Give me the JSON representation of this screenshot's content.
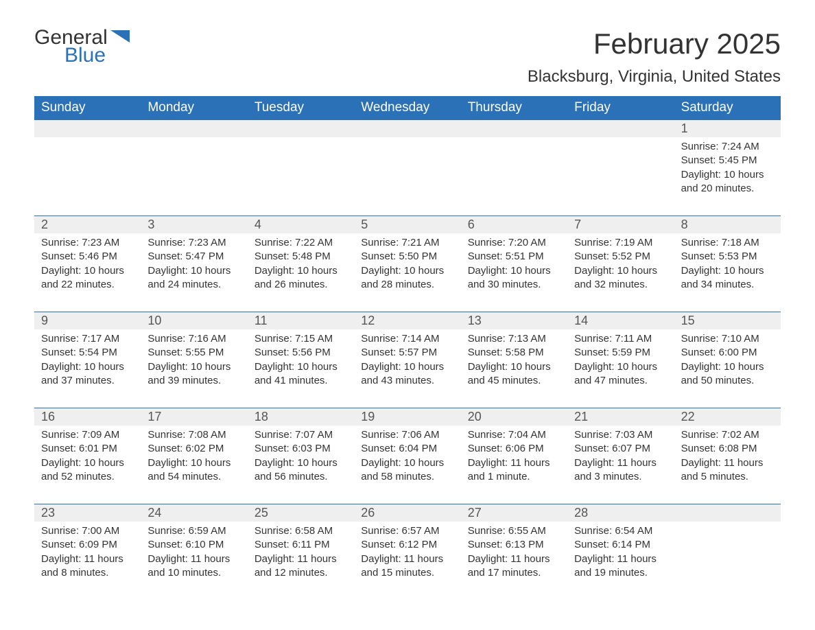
{
  "logo": {
    "word1": "General",
    "word2": "Blue",
    "flag_color": "#2a71b8"
  },
  "title": "February 2025",
  "location": "Blacksburg, Virginia, United States",
  "colors": {
    "header_bg": "#2a71b8",
    "header_text": "#ffffff",
    "daynum_bg": "#efefef",
    "text": "#333333",
    "rule": "#2a71b8"
  },
  "day_names": [
    "Sunday",
    "Monday",
    "Tuesday",
    "Wednesday",
    "Thursday",
    "Friday",
    "Saturday"
  ],
  "weeks": [
    {
      "nums": [
        "",
        "",
        "",
        "",
        "",
        "",
        "1"
      ],
      "cells": [
        {},
        {},
        {},
        {},
        {},
        {},
        {
          "sunrise": "Sunrise: 7:24 AM",
          "sunset": "Sunset: 5:45 PM",
          "daylight": "Daylight: 10 hours and 20 minutes."
        }
      ]
    },
    {
      "nums": [
        "2",
        "3",
        "4",
        "5",
        "6",
        "7",
        "8"
      ],
      "cells": [
        {
          "sunrise": "Sunrise: 7:23 AM",
          "sunset": "Sunset: 5:46 PM",
          "daylight": "Daylight: 10 hours and 22 minutes."
        },
        {
          "sunrise": "Sunrise: 7:23 AM",
          "sunset": "Sunset: 5:47 PM",
          "daylight": "Daylight: 10 hours and 24 minutes."
        },
        {
          "sunrise": "Sunrise: 7:22 AM",
          "sunset": "Sunset: 5:48 PM",
          "daylight": "Daylight: 10 hours and 26 minutes."
        },
        {
          "sunrise": "Sunrise: 7:21 AM",
          "sunset": "Sunset: 5:50 PM",
          "daylight": "Daylight: 10 hours and 28 minutes."
        },
        {
          "sunrise": "Sunrise: 7:20 AM",
          "sunset": "Sunset: 5:51 PM",
          "daylight": "Daylight: 10 hours and 30 minutes."
        },
        {
          "sunrise": "Sunrise: 7:19 AM",
          "sunset": "Sunset: 5:52 PM",
          "daylight": "Daylight: 10 hours and 32 minutes."
        },
        {
          "sunrise": "Sunrise: 7:18 AM",
          "sunset": "Sunset: 5:53 PM",
          "daylight": "Daylight: 10 hours and 34 minutes."
        }
      ]
    },
    {
      "nums": [
        "9",
        "10",
        "11",
        "12",
        "13",
        "14",
        "15"
      ],
      "cells": [
        {
          "sunrise": "Sunrise: 7:17 AM",
          "sunset": "Sunset: 5:54 PM",
          "daylight": "Daylight: 10 hours and 37 minutes."
        },
        {
          "sunrise": "Sunrise: 7:16 AM",
          "sunset": "Sunset: 5:55 PM",
          "daylight": "Daylight: 10 hours and 39 minutes."
        },
        {
          "sunrise": "Sunrise: 7:15 AM",
          "sunset": "Sunset: 5:56 PM",
          "daylight": "Daylight: 10 hours and 41 minutes."
        },
        {
          "sunrise": "Sunrise: 7:14 AM",
          "sunset": "Sunset: 5:57 PM",
          "daylight": "Daylight: 10 hours and 43 minutes."
        },
        {
          "sunrise": "Sunrise: 7:13 AM",
          "sunset": "Sunset: 5:58 PM",
          "daylight": "Daylight: 10 hours and 45 minutes."
        },
        {
          "sunrise": "Sunrise: 7:11 AM",
          "sunset": "Sunset: 5:59 PM",
          "daylight": "Daylight: 10 hours and 47 minutes."
        },
        {
          "sunrise": "Sunrise: 7:10 AM",
          "sunset": "Sunset: 6:00 PM",
          "daylight": "Daylight: 10 hours and 50 minutes."
        }
      ]
    },
    {
      "nums": [
        "16",
        "17",
        "18",
        "19",
        "20",
        "21",
        "22"
      ],
      "cells": [
        {
          "sunrise": "Sunrise: 7:09 AM",
          "sunset": "Sunset: 6:01 PM",
          "daylight": "Daylight: 10 hours and 52 minutes."
        },
        {
          "sunrise": "Sunrise: 7:08 AM",
          "sunset": "Sunset: 6:02 PM",
          "daylight": "Daylight: 10 hours and 54 minutes."
        },
        {
          "sunrise": "Sunrise: 7:07 AM",
          "sunset": "Sunset: 6:03 PM",
          "daylight": "Daylight: 10 hours and 56 minutes."
        },
        {
          "sunrise": "Sunrise: 7:06 AM",
          "sunset": "Sunset: 6:04 PM",
          "daylight": "Daylight: 10 hours and 58 minutes."
        },
        {
          "sunrise": "Sunrise: 7:04 AM",
          "sunset": "Sunset: 6:06 PM",
          "daylight": "Daylight: 11 hours and 1 minute."
        },
        {
          "sunrise": "Sunrise: 7:03 AM",
          "sunset": "Sunset: 6:07 PM",
          "daylight": "Daylight: 11 hours and 3 minutes."
        },
        {
          "sunrise": "Sunrise: 7:02 AM",
          "sunset": "Sunset: 6:08 PM",
          "daylight": "Daylight: 11 hours and 5 minutes."
        }
      ]
    },
    {
      "nums": [
        "23",
        "24",
        "25",
        "26",
        "27",
        "28",
        ""
      ],
      "cells": [
        {
          "sunrise": "Sunrise: 7:00 AM",
          "sunset": "Sunset: 6:09 PM",
          "daylight": "Daylight: 11 hours and 8 minutes."
        },
        {
          "sunrise": "Sunrise: 6:59 AM",
          "sunset": "Sunset: 6:10 PM",
          "daylight": "Daylight: 11 hours and 10 minutes."
        },
        {
          "sunrise": "Sunrise: 6:58 AM",
          "sunset": "Sunset: 6:11 PM",
          "daylight": "Daylight: 11 hours and 12 minutes."
        },
        {
          "sunrise": "Sunrise: 6:57 AM",
          "sunset": "Sunset: 6:12 PM",
          "daylight": "Daylight: 11 hours and 15 minutes."
        },
        {
          "sunrise": "Sunrise: 6:55 AM",
          "sunset": "Sunset: 6:13 PM",
          "daylight": "Daylight: 11 hours and 17 minutes."
        },
        {
          "sunrise": "Sunrise: 6:54 AM",
          "sunset": "Sunset: 6:14 PM",
          "daylight": "Daylight: 11 hours and 19 minutes."
        },
        {}
      ]
    }
  ]
}
